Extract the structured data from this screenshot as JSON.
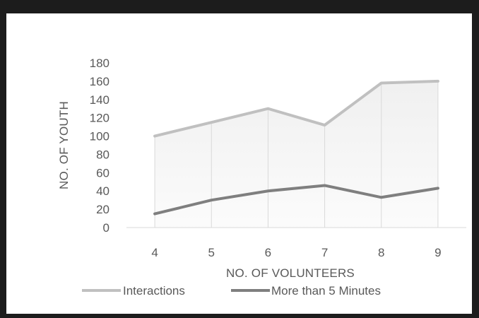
{
  "chart_data": {
    "type": "line",
    "title": "",
    "xlabel": "NO. OF VOLUNTEERS",
    "ylabel": "NO. OF YOUTH",
    "categories": [
      "4",
      "5",
      "6",
      "7",
      "8",
      "9"
    ],
    "ylim": [
      0,
      180
    ],
    "yticks": [
      0,
      20,
      40,
      60,
      80,
      100,
      120,
      140,
      160,
      180
    ],
    "series": [
      {
        "name": "Interactions",
        "color": "#c0c0c0",
        "values": [
          100,
          115,
          130,
          112,
          158,
          160
        ]
      },
      {
        "name": "More than 5 Minutes",
        "color": "#7f7f7f",
        "values": [
          15,
          30,
          40,
          46,
          33,
          43
        ]
      }
    ],
    "legend_position": "bottom",
    "grid": "vertical drop lines",
    "fill": "gradient under upper series"
  }
}
